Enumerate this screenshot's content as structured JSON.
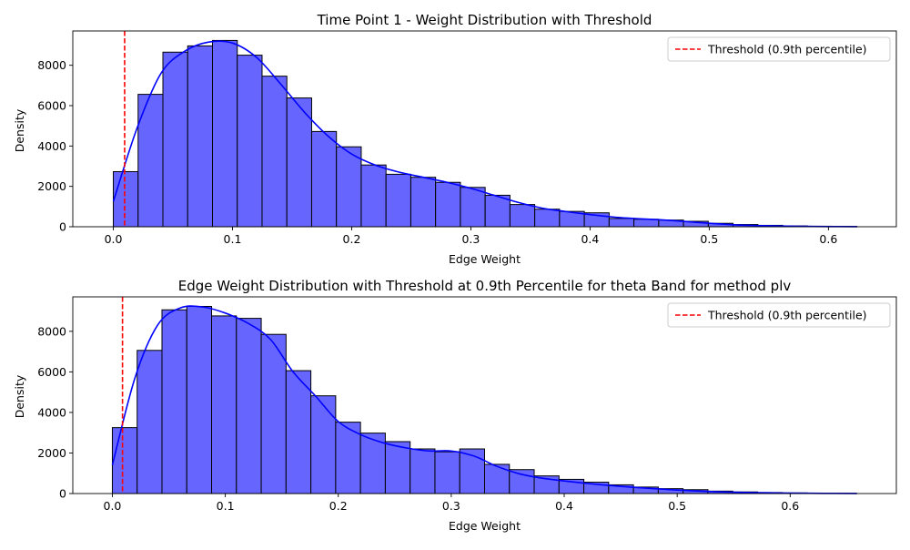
{
  "colors": {
    "bar_fill": "#6666ff",
    "bar_edge": "#000000",
    "kde_line": "#0000ff",
    "threshold": "#ff0000"
  },
  "chart_data": [
    {
      "type": "bar",
      "title": "Time Point 1 - Weight Distribution with Threshold",
      "xlabel": "Edge Weight",
      "ylabel": "Density",
      "xlim": [
        -0.034,
        0.657
      ],
      "ylim": [
        0,
        9700
      ],
      "xticks": [
        0.0,
        0.1,
        0.2,
        0.3,
        0.4,
        0.5,
        0.6
      ],
      "xtick_labels": [
        "0.0",
        "0.1",
        "0.2",
        "0.3",
        "0.4",
        "0.5",
        "0.6"
      ],
      "yticks": [
        0,
        2000,
        4000,
        6000,
        8000
      ],
      "ytick_labels": [
        "0",
        "2000",
        "4000",
        "6000",
        "8000"
      ],
      "legend": {
        "placement": "top-right",
        "label": "Threshold (0.9th percentile)"
      },
      "threshold_x": 0.0095,
      "bin_edges": [
        0.0,
        0.0208,
        0.0416,
        0.0624,
        0.0832,
        0.104,
        0.1248,
        0.1456,
        0.1664,
        0.1872,
        0.208,
        0.2288,
        0.2496,
        0.2704,
        0.2912,
        0.312,
        0.3328,
        0.3536,
        0.3744,
        0.3952,
        0.416,
        0.4368,
        0.4576,
        0.4784,
        0.4992,
        0.52,
        0.5408,
        0.5616,
        0.5824,
        0.6032,
        0.624
      ],
      "values": [
        2730,
        6560,
        8650,
        8960,
        9230,
        8500,
        7460,
        6380,
        4720,
        3960,
        3060,
        2600,
        2450,
        2200,
        1950,
        1560,
        1100,
        870,
        760,
        690,
        410,
        370,
        330,
        270,
        170,
        110,
        70,
        40,
        25,
        15
      ],
      "kde": {
        "x": [
          0.0,
          0.02,
          0.04,
          0.06,
          0.08,
          0.1,
          0.12,
          0.14,
          0.16,
          0.18,
          0.2,
          0.22,
          0.24,
          0.26,
          0.28,
          0.3,
          0.32,
          0.34,
          0.36,
          0.38,
          0.4,
          0.42,
          0.44,
          0.46,
          0.48,
          0.5,
          0.52,
          0.54,
          0.56,
          0.58,
          0.6,
          0.624
        ],
        "y": [
          1250,
          4900,
          7600,
          8700,
          9150,
          9100,
          8400,
          7100,
          5700,
          4500,
          3600,
          3050,
          2700,
          2450,
          2200,
          1900,
          1550,
          1200,
          920,
          750,
          600,
          480,
          400,
          340,
          260,
          170,
          100,
          60,
          35,
          20,
          10,
          5
        ]
      }
    },
    {
      "type": "bar",
      "title": "Edge Weight Distribution with Threshold at 0.9th Percentile for theta Band for method plv",
      "xlabel": "Edge Weight",
      "ylabel": "Density",
      "xlim": [
        -0.035,
        0.694
      ],
      "ylim": [
        0,
        9700
      ],
      "xticks": [
        0.0,
        0.1,
        0.2,
        0.3,
        0.4,
        0.5,
        0.6
      ],
      "xtick_labels": [
        "0.0",
        "0.1",
        "0.2",
        "0.3",
        "0.4",
        "0.5",
        "0.6"
      ],
      "yticks": [
        0,
        2000,
        4000,
        6000,
        8000
      ],
      "ytick_labels": [
        "0",
        "2000",
        "4000",
        "6000",
        "8000"
      ],
      "legend": {
        "placement": "top-right",
        "label": "Threshold (0.9th percentile)"
      },
      "threshold_x": 0.009,
      "bin_edges": [
        0.0,
        0.02197,
        0.04393,
        0.0659,
        0.08787,
        0.10983,
        0.1318,
        0.15377,
        0.17573,
        0.1977,
        0.21967,
        0.24163,
        0.2636,
        0.28557,
        0.30753,
        0.3295,
        0.35147,
        0.37343,
        0.3954,
        0.41737,
        0.43933,
        0.4613,
        0.48327,
        0.50523,
        0.5272,
        0.54917,
        0.57113,
        0.5931,
        0.61507,
        0.63703,
        0.659
      ],
      "values": [
        3250,
        7060,
        9060,
        9230,
        8760,
        8640,
        7850,
        6060,
        4820,
        3520,
        2980,
        2560,
        2200,
        2060,
        2200,
        1440,
        1180,
        870,
        700,
        560,
        430,
        320,
        240,
        190,
        120,
        80,
        50,
        30,
        20,
        10
      ],
      "kde": {
        "x": [
          0.0,
          0.02,
          0.04,
          0.06,
          0.08,
          0.1,
          0.12,
          0.14,
          0.16,
          0.18,
          0.2,
          0.22,
          0.24,
          0.26,
          0.28,
          0.3,
          0.32,
          0.34,
          0.36,
          0.38,
          0.4,
          0.42,
          0.44,
          0.46,
          0.48,
          0.5,
          0.52,
          0.54,
          0.56,
          0.58,
          0.6,
          0.63,
          0.659
        ],
        "y": [
          1400,
          5700,
          8300,
          9150,
          9200,
          8900,
          8400,
          7600,
          6000,
          4800,
          3550,
          2900,
          2500,
          2250,
          2100,
          2100,
          1850,
          1350,
          980,
          760,
          620,
          500,
          400,
          310,
          240,
          170,
          120,
          80,
          55,
          35,
          20,
          10,
          5
        ]
      }
    }
  ]
}
